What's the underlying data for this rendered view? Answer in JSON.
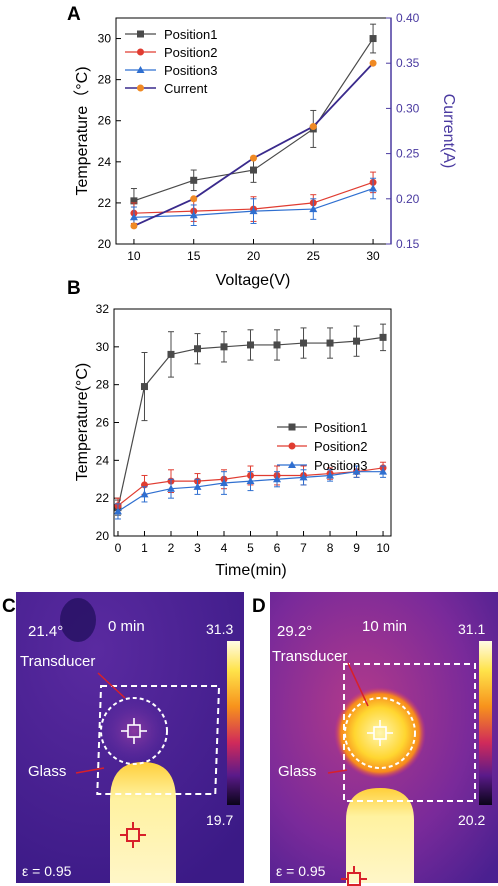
{
  "panel_labels": {
    "a": "A",
    "b": "B",
    "c": "C",
    "d": "D"
  },
  "colors": {
    "pos1": "#4a4a4a",
    "pos2": "#e03c31",
    "pos3": "#2f6fd0",
    "current_marker": "#f08a24",
    "current_line": "#3a2a8c",
    "right_axis": "#4a3aa0"
  },
  "chart_data": [
    {
      "type": "line",
      "panel": "A",
      "xlabel": "Voltage(V)",
      "ylabel": "Temperature（°C)",
      "y2label": "Current(A)",
      "x": [
        10,
        15,
        20,
        25,
        30
      ],
      "xticks": [
        "10",
        "15",
        "20",
        "25",
        "30"
      ],
      "xlim": [
        8.5,
        31.5
      ],
      "ylim": [
        20,
        31
      ],
      "yticks": [
        "20",
        "22",
        "24",
        "26",
        "28",
        "30"
      ],
      "y2lim": [
        0.15,
        0.4
      ],
      "y2ticks": [
        "0.15",
        "0.20",
        "0.25",
        "0.30",
        "0.35",
        "0.40"
      ],
      "legend_position": "top-left",
      "series": [
        {
          "name": "Position1",
          "marker": "square",
          "values": [
            22.1,
            23.1,
            23.6,
            25.6,
            30.0
          ],
          "err": [
            0.6,
            0.5,
            0.6,
            0.9,
            0.7
          ]
        },
        {
          "name": "Position2",
          "marker": "circle",
          "values": [
            21.5,
            21.6,
            21.7,
            22.0,
            23.0
          ],
          "err": [
            0.5,
            0.5,
            0.6,
            0.4,
            0.5
          ]
        },
        {
          "name": "Position3",
          "marker": "triangle",
          "values": [
            21.3,
            21.4,
            21.6,
            21.7,
            22.7
          ],
          "err": [
            0.5,
            0.5,
            0.6,
            0.5,
            0.5
          ]
        },
        {
          "name": "Current",
          "marker": "circle",
          "axis": "right",
          "values": [
            0.17,
            0.2,
            0.245,
            0.28,
            0.35
          ]
        }
      ]
    },
    {
      "type": "line",
      "panel": "B",
      "xlabel": "Time(min)",
      "ylabel": "Temperature(°C)",
      "x": [
        0,
        1,
        2,
        3,
        4,
        5,
        6,
        7,
        8,
        9,
        10
      ],
      "xticks": [
        "0",
        "1",
        "2",
        "3",
        "4",
        "5",
        "6",
        "7",
        "8",
        "9",
        "10"
      ],
      "xlim": [
        -0.15,
        10.3
      ],
      "ylim": [
        20,
        32
      ],
      "yticks": [
        "20",
        "22",
        "24",
        "26",
        "28",
        "30",
        "32"
      ],
      "legend_position": "middle-right",
      "series": [
        {
          "name": "Position1",
          "marker": "square",
          "values": [
            21.5,
            27.9,
            29.6,
            29.9,
            30.0,
            30.1,
            30.1,
            30.2,
            30.2,
            30.3,
            30.5
          ],
          "err": [
            0.4,
            1.8,
            1.2,
            0.8,
            0.8,
            0.8,
            0.8,
            0.8,
            0.8,
            0.8,
            0.7
          ]
        },
        {
          "name": "Position2",
          "marker": "circle",
          "values": [
            21.6,
            22.7,
            22.9,
            22.9,
            23.0,
            23.2,
            23.2,
            23.2,
            23.3,
            23.4,
            23.6
          ],
          "err": [
            0.4,
            0.5,
            0.6,
            0.4,
            0.5,
            0.5,
            0.5,
            0.5,
            0.3,
            0.3,
            0.3
          ]
        },
        {
          "name": "Position3",
          "marker": "triangle",
          "values": [
            21.3,
            22.2,
            22.5,
            22.6,
            22.8,
            22.9,
            23.0,
            23.1,
            23.2,
            23.4,
            23.4
          ],
          "err": [
            0.4,
            0.4,
            0.5,
            0.4,
            0.6,
            0.5,
            0.4,
            0.4,
            0.3,
            0.3,
            0.3
          ]
        }
      ]
    }
  ],
  "thermal": {
    "c": {
      "top_left": "21.4°",
      "time": "0 min",
      "scale_max": "31.3",
      "scale_min": "19.7",
      "transducer": "Transducer",
      "glass": "Glass",
      "emissivity": "ε = 0.95"
    },
    "d": {
      "top_left": "29.2°",
      "time": "10 min",
      "scale_max": "31.1",
      "scale_min": "20.2",
      "transducer": "Transducer",
      "glass": "Glass",
      "emissivity": "ε = 0.95"
    }
  }
}
